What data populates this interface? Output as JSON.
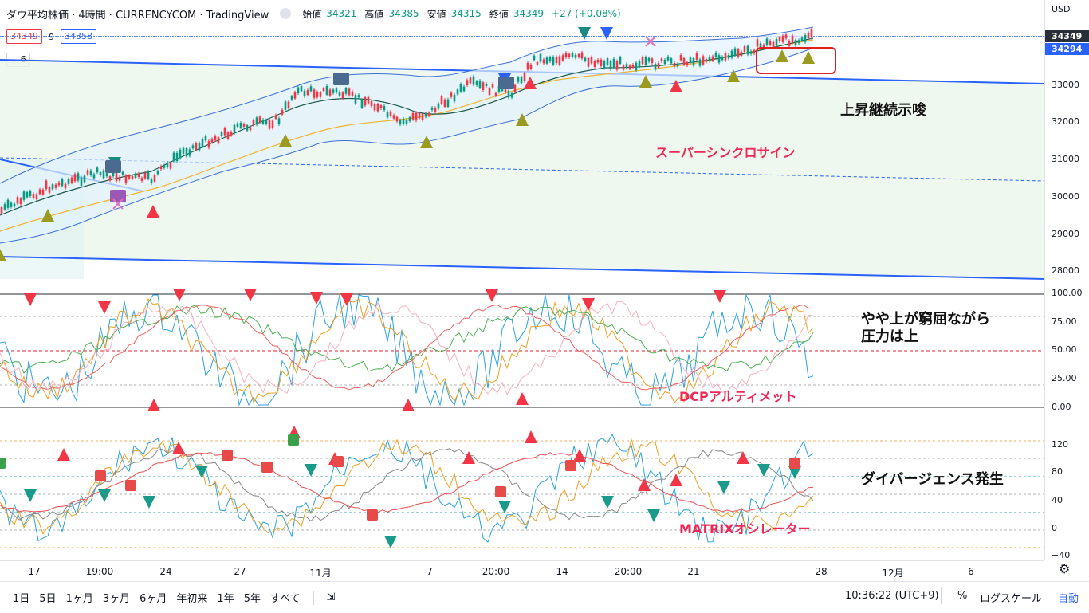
{
  "header": {
    "title": "ダウ平均株価 · 4時間 · CURRENCYCOM · TradingView",
    "ohlc": [
      {
        "label": "始値",
        "value": "34321"
      },
      {
        "label": "高値",
        "value": "34385"
      },
      {
        "label": "安値",
        "value": "34315"
      },
      {
        "label": "終値",
        "value": "34349"
      },
      {
        "label": "",
        "value": "+27 (+0.08%)"
      }
    ]
  },
  "price_row": {
    "bid": "34349",
    "spread": "9",
    "ask": "34358"
  },
  "indicator_count": "6",
  "currency": "USD",
  "price_scale": {
    "ticks": [
      "33000",
      "32000",
      "31000",
      "30000",
      "29000",
      "28000"
    ],
    "last_price": "34349",
    "second_price": "34294",
    "last_color": "#2a2e39",
    "second_color": "#2962ff"
  },
  "osc1_scale": [
    "100.00",
    "75.00",
    "50.00",
    "25.00",
    "0.00"
  ],
  "osc2_scale": [
    "120",
    "80",
    "40",
    "0",
    "−40"
  ],
  "annotations": {
    "main_black": "上昇継続示唆",
    "main_pink": "スーパーシンクロサイン",
    "osc1_black_1": "やや上が窮屈ながら",
    "osc1_black_2": "圧力は上",
    "osc1_pink": "DCPアルティメット",
    "osc2_black": "ダイバージェンス発生",
    "osc2_pink": "MATRIXオシレーター"
  },
  "time_axis": [
    "17",
    "19:00",
    "24",
    "27",
    "11月",
    "7",
    "20:00",
    "14",
    "20:00",
    "21",
    "28",
    "12月",
    "6"
  ],
  "bottom_bar": {
    "ranges": [
      "1日",
      "5日",
      "1ヶ月",
      "3ヶ月",
      "6ヶ月",
      "年初来",
      "1年",
      "5年",
      "すべて"
    ],
    "clock": "10:36:22 (UTC+9)",
    "percent": "%",
    "log": "ログスケール",
    "auto": "自動"
  },
  "colors": {
    "up": "#089981",
    "down": "#f23645",
    "trend_line": "#2962ff",
    "annotation_pink": "#f0285a",
    "marker_olive": "#9a9a1e",
    "marker_teal": "#1a8a82"
  }
}
